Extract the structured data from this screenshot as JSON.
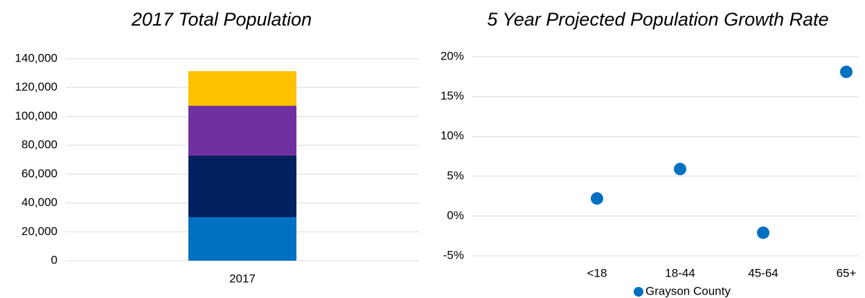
{
  "chart_data": [
    {
      "type": "stacked_bar",
      "title": "2017 Total Population",
      "categories": [
        "2017"
      ],
      "series": [
        {
          "color": "#0070c0",
          "values": [
            30200
          ]
        },
        {
          "color": "#002060",
          "values": [
            42700
          ]
        },
        {
          "color": "#7030a0",
          "values": [
            34500
          ]
        },
        {
          "color": "#ffc000",
          "values": [
            24000
          ]
        }
      ],
      "ylim": [
        0,
        140000
      ],
      "yticks": [
        0,
        {
          "value": 20000,
          "label": "20,000"
        },
        {
          "value": 40000,
          "label": "40,000"
        },
        {
          "value": 60000,
          "label": "60,000"
        },
        {
          "value": 80000,
          "label": "80,000"
        },
        {
          "value": 100000,
          "label": "100,000"
        },
        {
          "value": 120000,
          "label": "120,000"
        },
        {
          "value": 140000,
          "label": "140,000"
        }
      ],
      "grid": true
    },
    {
      "type": "dot",
      "title": "5 Year Projected Population Growth Rate",
      "categories": [
        null,
        "<18",
        "18-44",
        "45-64",
        "65+"
      ],
      "series": [
        {
          "name": "Grayson County",
          "color": "#0070c0",
          "values": [
            null,
            2.2,
            5.9,
            -2.1,
            18.1
          ]
        }
      ],
      "ylim": [
        -5,
        20
      ],
      "yticks": [
        {
          "value": -5,
          "label": "-5%"
        },
        {
          "value": 0,
          "label": "0%"
        },
        {
          "value": 5,
          "label": "5%"
        },
        {
          "value": 10,
          "label": "10%"
        },
        {
          "value": 15,
          "label": "15%"
        },
        {
          "value": 20,
          "label": "20%"
        }
      ],
      "grid": true,
      "legend": "bottom"
    }
  ]
}
